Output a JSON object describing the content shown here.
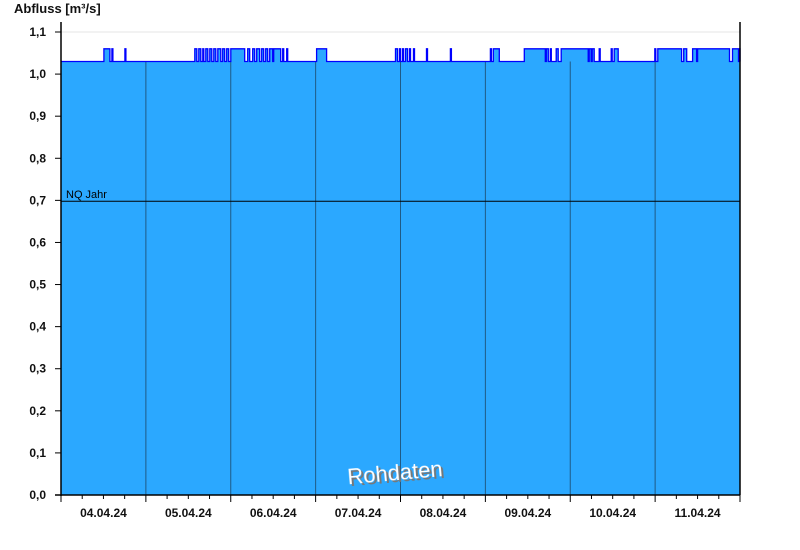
{
  "chart_data": {
    "type": "area",
    "title": "",
    "ylabel": "Abfluss [m³/s]",
    "xlabel": "",
    "xlim": [
      "2024-04-04 00:00",
      "2024-04-12 00:00"
    ],
    "ylim": [
      0,
      1.1
    ],
    "yticks": [
      0,
      0.1,
      0.2,
      0.3,
      0.4,
      0.5,
      0.6,
      0.7,
      0.8,
      0.9,
      1.0,
      1.1
    ],
    "ytick_labels": [
      "0,0",
      "0,1",
      "0,2",
      "0,3",
      "0,4",
      "0,5",
      "0,6",
      "0,7",
      "0,8",
      "0,9",
      "1,0",
      "1,1"
    ],
    "xtick_labels": [
      "04.04.24",
      "05.04.24",
      "06.04.24",
      "07.04.24",
      "08.04.24",
      "09.04.24",
      "10.04.24",
      "11.04.24"
    ],
    "grid": "horizontal line at 1,1 only; vertical lines at day boundaries",
    "series": [
      {
        "base_value": 1.03,
        "high_value": 1.06,
        "high_intervals": [
          [
            "2024-04-04 12:08",
            "2024-04-04 13:50"
          ],
          [
            "2024-04-04 14:24",
            "2024-04-04 14:41"
          ],
          [
            "2024-04-04 18:04",
            "2024-04-04 18:21"
          ],
          [
            "2024-04-05 13:50",
            "2024-04-05 14:24"
          ],
          [
            "2024-04-05 14:58",
            "2024-04-05 15:32"
          ],
          [
            "2024-04-05 16:05",
            "2024-04-05 16:23"
          ],
          [
            "2024-04-05 16:56",
            "2024-04-05 17:30"
          ],
          [
            "2024-04-05 18:04",
            "2024-04-05 18:38"
          ],
          [
            "2024-04-05 19:12",
            "2024-04-05 19:46"
          ],
          [
            "2024-04-05 20:20",
            "2024-04-05 21:11"
          ],
          [
            "2024-04-05 21:44",
            "2024-04-05 22:18"
          ],
          [
            "2024-04-05 22:52",
            "2024-04-05 23:26"
          ],
          [
            "2024-04-06 00:00",
            "2024-04-06 03:57"
          ],
          [
            "2024-04-06 04:48",
            "2024-04-06 05:22"
          ],
          [
            "2024-04-06 06:13",
            "2024-04-06 06:47"
          ],
          [
            "2024-04-06 07:20",
            "2024-04-06 08:11"
          ],
          [
            "2024-04-06 08:45",
            "2024-04-06 09:19"
          ],
          [
            "2024-04-06 09:53",
            "2024-04-06 10:27"
          ],
          [
            "2024-04-06 11:01",
            "2024-04-06 11:52"
          ],
          [
            "2024-04-06 12:08",
            "2024-04-06 14:07"
          ],
          [
            "2024-04-06 14:41",
            "2024-04-06 14:58"
          ],
          [
            "2024-04-06 15:49",
            "2024-04-06 16:06"
          ],
          [
            "2024-04-07 00:17",
            "2024-04-07 03:06"
          ],
          [
            "2024-04-07 22:35",
            "2024-04-07 23:09"
          ],
          [
            "2024-04-07 23:43",
            "2024-04-08 00:00"
          ],
          [
            "2024-04-08 00:34",
            "2024-04-08 00:51"
          ],
          [
            "2024-04-08 01:25",
            "2024-04-08 01:58"
          ],
          [
            "2024-04-08 02:32",
            "2024-04-08 02:49"
          ],
          [
            "2024-04-08 03:40",
            "2024-04-08 03:57"
          ],
          [
            "2024-04-08 07:21",
            "2024-04-08 07:38"
          ],
          [
            "2024-04-08 14:06",
            "2024-04-08 14:23"
          ],
          [
            "2024-04-09 01:25",
            "2024-04-09 01:42"
          ],
          [
            "2024-04-09 02:15",
            "2024-04-09 03:57"
          ],
          [
            "2024-04-09 11:00",
            "2024-04-09 16:56"
          ],
          [
            "2024-04-09 17:13",
            "2024-04-09 17:47"
          ],
          [
            "2024-04-09 18:21",
            "2024-04-09 18:38"
          ],
          [
            "2024-04-09 20:02",
            "2024-04-09 20:36"
          ],
          [
            "2024-04-09 21:27",
            "2024-04-10 05:05"
          ],
          [
            "2024-04-10 05:22",
            "2024-04-10 05:56"
          ],
          [
            "2024-04-10 06:13",
            "2024-04-10 06:47"
          ],
          [
            "2024-04-10 08:11",
            "2024-04-10 08:28"
          ],
          [
            "2024-04-10 11:34",
            "2024-04-10 11:51"
          ],
          [
            "2024-04-10 12:25",
            "2024-04-10 13:33"
          ],
          [
            "2024-04-10 23:54",
            "2024-04-11 00:11"
          ],
          [
            "2024-04-11 00:45",
            "2024-04-11 07:30"
          ],
          [
            "2024-04-11 08:04",
            "2024-04-11 08:55"
          ],
          [
            "2024-04-11 10:36",
            "2024-04-11 11:44"
          ],
          [
            "2024-04-11 12:00",
            "2024-04-11 21:02"
          ],
          [
            "2024-04-11 21:53",
            "2024-04-11 23:35"
          ],
          [
            "2024-04-11 23:52",
            "2024-04-12 00:00"
          ]
        ]
      }
    ],
    "reference_lines": [
      {
        "label": "NQ Jahr",
        "value": 0.698
      }
    ],
    "watermark": "Rohdaten",
    "colors": {
      "fill": "#2ba8ff",
      "line": "#0000ff",
      "day_lines": "#1f5a85",
      "grid": "#e6e6e6"
    }
  }
}
